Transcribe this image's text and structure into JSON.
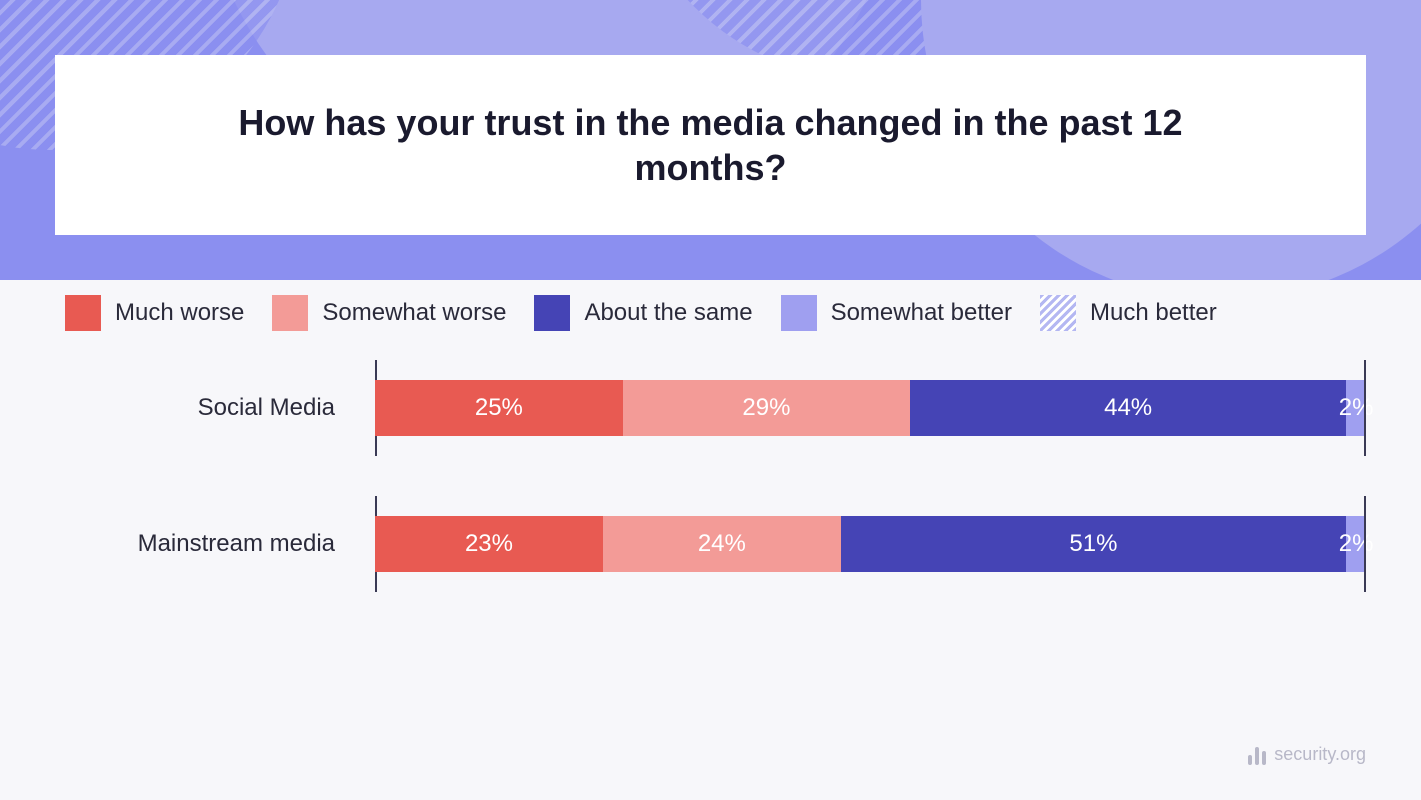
{
  "title": "How has your trust in the media changed in the past 12 months?",
  "title_fontsize": 36,
  "legend_fontsize": 24,
  "row_label_fontsize": 24,
  "value_label_fontsize": 24,
  "attribution": "security.org",
  "attribution_fontsize": 18,
  "background": {
    "top_color": "#8b8ff0",
    "top_accent": "#a7a9f0",
    "bottom_color": "#f7f7fa",
    "title_box_color": "#ffffff",
    "tick_color": "#3a3a55"
  },
  "chart": {
    "type": "stacked-bar-horizontal",
    "legend": [
      {
        "label": "Much worse",
        "color": "#e85a52",
        "pattern": "solid"
      },
      {
        "label": "Somewhat worse",
        "color": "#f39b97",
        "pattern": "solid"
      },
      {
        "label": "About the same",
        "color": "#4544b5",
        "pattern": "solid"
      },
      {
        "label": "Somewhat better",
        "color": "#9f9ff0",
        "pattern": "solid"
      },
      {
        "label": "Much better",
        "color": "#d6d7f7",
        "pattern": "diagonal-hatch"
      }
    ],
    "rows": [
      {
        "label": "Social Media",
        "segments": [
          {
            "value": 25,
            "display": "25%",
            "color": "#e85a52"
          },
          {
            "value": 29,
            "display": "29%",
            "color": "#f39b97"
          },
          {
            "value": 44,
            "display": "44%",
            "color": "#4544b5"
          },
          {
            "value": 2,
            "display": "2%",
            "color": "#9f9ff0"
          }
        ]
      },
      {
        "label": "Mainstream media",
        "segments": [
          {
            "value": 23,
            "display": "23%",
            "color": "#e85a52"
          },
          {
            "value": 24,
            "display": "24%",
            "color": "#f39b97"
          },
          {
            "value": 51,
            "display": "51%",
            "color": "#4544b5"
          },
          {
            "value": 2,
            "display": "2%",
            "color": "#9f9ff0"
          }
        ]
      }
    ]
  }
}
